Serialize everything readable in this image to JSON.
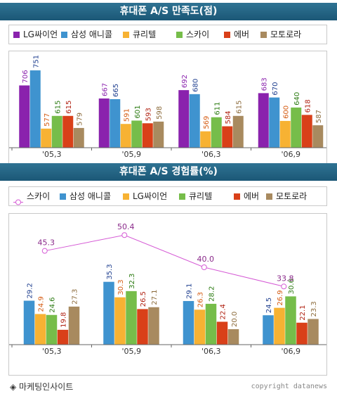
{
  "colors": {
    "banner": "#1f6183",
    "lg": "#8a22ad",
    "anycall": "#3f93cf",
    "curitel": "#f7b233",
    "sky": "#76bd4a",
    "ever": "#d94019",
    "motorola": "#a88a5f"
  },
  "chart1": {
    "title": "휴대폰 A/S 만족도(점)",
    "legend": [
      {
        "label": "LG싸이언",
        "color": "#8a22ad",
        "icon": "square"
      },
      {
        "label": "삼성 애니콜",
        "color": "#3f93cf",
        "icon": "square"
      },
      {
        "label": "큐리텔",
        "color": "#f7b233",
        "icon": "square"
      },
      {
        "label": "스카이",
        "color": "#76bd4a",
        "icon": "square"
      },
      {
        "label": "에버",
        "color": "#d94019",
        "icon": "square"
      },
      {
        "label": "모토로라",
        "color": "#a88a5f",
        "icon": "square"
      }
    ]
  },
  "chart2": {
    "title": "휴대폰 A/S 경험률(%)",
    "legend": [
      {
        "label": "스카이",
        "color": "#d55ad5",
        "icon": "circle-line"
      },
      {
        "label": "삼성 애니콜",
        "color": "#3f93cf",
        "icon": "square"
      },
      {
        "label": "LG싸이언",
        "color": "#f7b233",
        "icon": "square"
      },
      {
        "label": "큐리텔",
        "color": "#76bd4a",
        "icon": "square"
      },
      {
        "label": "에버",
        "color": "#d94019",
        "icon": "square"
      },
      {
        "label": "모토로라",
        "color": "#a88a5f",
        "icon": "square"
      }
    ]
  },
  "chart_data": [
    {
      "type": "bar",
      "title": "휴대폰 A/S 만족도(점)",
      "categories": [
        "'05,3",
        "'05,9",
        "'06,3",
        "'06,9"
      ],
      "ylim": [
        520,
        770
      ],
      "series": [
        {
          "name": "LG싸이언",
          "color": "#8a22ad",
          "label_color": "#8a22ad",
          "values": [
            706,
            667,
            692,
            683
          ]
        },
        {
          "name": "삼성 애니콜",
          "color": "#3f93cf",
          "label_color": "#1f3f8f",
          "values": [
            751,
            665,
            680,
            670
          ]
        },
        {
          "name": "큐리텔",
          "color": "#f7b233",
          "label_color": "#d55a10",
          "values": [
            577,
            591,
            569,
            600
          ]
        },
        {
          "name": "스카이",
          "color": "#76bd4a",
          "label_color": "#2a7a10",
          "values": [
            615,
            601,
            611,
            640
          ]
        },
        {
          "name": "에버",
          "color": "#d94019",
          "label_color": "#b02010",
          "values": [
            615,
            593,
            584,
            618
          ]
        },
        {
          "name": "모토로라",
          "color": "#a88a5f",
          "label_color": "#8b6a3a",
          "values": [
            579,
            598,
            615,
            587
          ]
        }
      ]
    },
    {
      "type": "bar",
      "title": "휴대폰 A/S 경험률(%)",
      "categories": [
        "'05,3",
        "'05,9",
        "'06,3",
        "'06,9"
      ],
      "ylim": [
        15,
        55
      ],
      "series": [
        {
          "name": "삼성 애니콜",
          "color": "#3f93cf",
          "label_color": "#1f3f8f",
          "values": [
            29.2,
            35.3,
            29.1,
            24.5
          ]
        },
        {
          "name": "LG싸이언",
          "color": "#f7b233",
          "label_color": "#d55a10",
          "values": [
            24.9,
            30.3,
            26.3,
            26.9
          ]
        },
        {
          "name": "큐리텔",
          "color": "#76bd4a",
          "label_color": "#2a7a10",
          "values": [
            24.6,
            32.3,
            28.2,
            30.6
          ]
        },
        {
          "name": "에버",
          "color": "#d94019",
          "label_color": "#b02010",
          "values": [
            19.8,
            26.5,
            22.4,
            22.1
          ]
        },
        {
          "name": "모토로라",
          "color": "#a88a5f",
          "label_color": "#8b6a3a",
          "values": [
            27.3,
            27.1,
            20.0,
            23.3
          ]
        }
      ],
      "line_series": {
        "name": "스카이",
        "color": "#d55ad5",
        "label_color": "#8a2a8a",
        "values": [
          45.3,
          50.4,
          40.0,
          33.8
        ]
      }
    }
  ],
  "footer": {
    "left": "◈ 마케팅인사이트",
    "right": "copyright datanews"
  }
}
